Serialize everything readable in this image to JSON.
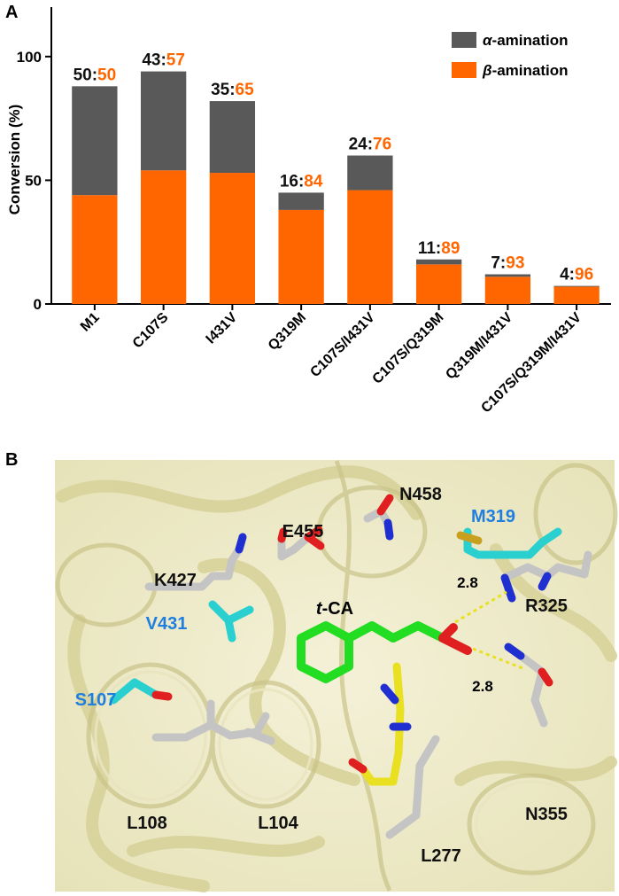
{
  "panel_a": {
    "letter": "A",
    "chart_data": {
      "type": "bar",
      "stacked": true,
      "ylabel": "Conversion (%)",
      "ylim": [
        0,
        120
      ],
      "yticks": [
        "0",
        "50",
        "100"
      ],
      "categories": [
        "M1",
        "C107S",
        "I431V",
        "Q319M",
        "C107S/I431V",
        "C107S/Q319M",
        "Q319M/I431V",
        "C107S/Q319M/I431V"
      ],
      "series": [
        {
          "name": "β-amination",
          "color": "#ff6600",
          "values": [
            44,
            54,
            53,
            38,
            46,
            16,
            11,
            7
          ]
        },
        {
          "name": "α-amination",
          "color": "#595959",
          "values": [
            44,
            40,
            29,
            7,
            14,
            2,
            1,
            0.3
          ]
        }
      ],
      "ratio_labels": [
        {
          "alpha": "50",
          "beta": "50"
        },
        {
          "alpha": "43",
          "beta": "57"
        },
        {
          "alpha": "35",
          "beta": "65"
        },
        {
          "alpha": "16",
          "beta": "84"
        },
        {
          "alpha": "24",
          "beta": "76"
        },
        {
          "alpha": "11",
          "beta": "89"
        },
        {
          "alpha": "7",
          "beta": "93"
        },
        {
          "alpha": "4",
          "beta": "96"
        }
      ],
      "ratio_separator": ":",
      "legend": {
        "placement": "top-right",
        "entries": [
          {
            "symbol": "α",
            "text": "-amination",
            "color": "#595959"
          },
          {
            "symbol": "β",
            "text": "-amination",
            "color": "#ff6600"
          }
        ]
      },
      "grid": false
    }
  },
  "panel_b": {
    "letter": "B",
    "residue_labels": [
      {
        "text": "N458",
        "color": "#111111"
      },
      {
        "text": "M319",
        "color": "#1f7fe0"
      },
      {
        "text": "E455",
        "color": "#111111"
      },
      {
        "text": "K427",
        "color": "#111111"
      },
      {
        "text": "R325",
        "color": "#111111"
      },
      {
        "text": "V431",
        "color": "#1f7fe0"
      },
      {
        "text": "S107",
        "color": "#1f7fe0"
      },
      {
        "text": "L108",
        "color": "#111111"
      },
      {
        "text": "L104",
        "color": "#111111"
      },
      {
        "text": "N355",
        "color": "#111111"
      },
      {
        "text": "L277",
        "color": "#111111"
      }
    ],
    "ligand_label": {
      "italic": "t",
      "rest": "-CA"
    },
    "distances": [
      "2.8",
      "2.8"
    ],
    "colors": {
      "carbon_residue": "#c4c4c4",
      "carbon_mutant": "#2ad0d0",
      "ligand": "#22dd22",
      "cofactor": "#e8e020",
      "oxygen": "#e02020",
      "nitrogen": "#2030d0",
      "sulfur": "#c8a020"
    }
  }
}
